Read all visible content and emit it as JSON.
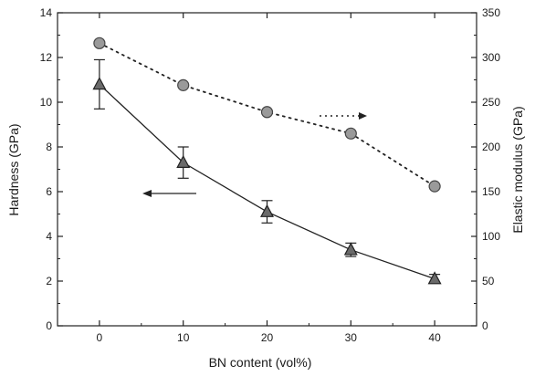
{
  "chart_data": {
    "type": "line",
    "title": "",
    "xlabel": "BN content (vol%)",
    "ylabel_left": "Hardness (GPa)",
    "ylabel_right": "Elastic modulus (GPa)",
    "x": [
      0,
      10,
      20,
      30,
      40
    ],
    "xlim": [
      -5,
      45
    ],
    "x_ticks": [
      0,
      10,
      20,
      30,
      40
    ],
    "ylim_left": [
      0,
      14
    ],
    "y_ticks_left": [
      0,
      2,
      4,
      6,
      8,
      10,
      12,
      14
    ],
    "ylim_right": [
      0,
      350
    ],
    "y_ticks_right": [
      0,
      50,
      100,
      150,
      200,
      250,
      300,
      350
    ],
    "grid": false,
    "series": [
      {
        "axis": "left",
        "marker": "triangle",
        "line_style": "solid",
        "values": [
          10.8,
          7.3,
          5.1,
          3.4,
          2.1
        ],
        "error": [
          1.1,
          0.7,
          0.5,
          0.3,
          0.2
        ]
      },
      {
        "axis": "right",
        "marker": "circle",
        "line_style": "dotted",
        "values": [
          316,
          269,
          239,
          215,
          156
        ]
      }
    ],
    "annotations": [
      {
        "type": "arrow",
        "direction": "left",
        "points_to": "left axis"
      },
      {
        "type": "arrow",
        "direction": "right",
        "points_to": "right axis"
      }
    ]
  }
}
